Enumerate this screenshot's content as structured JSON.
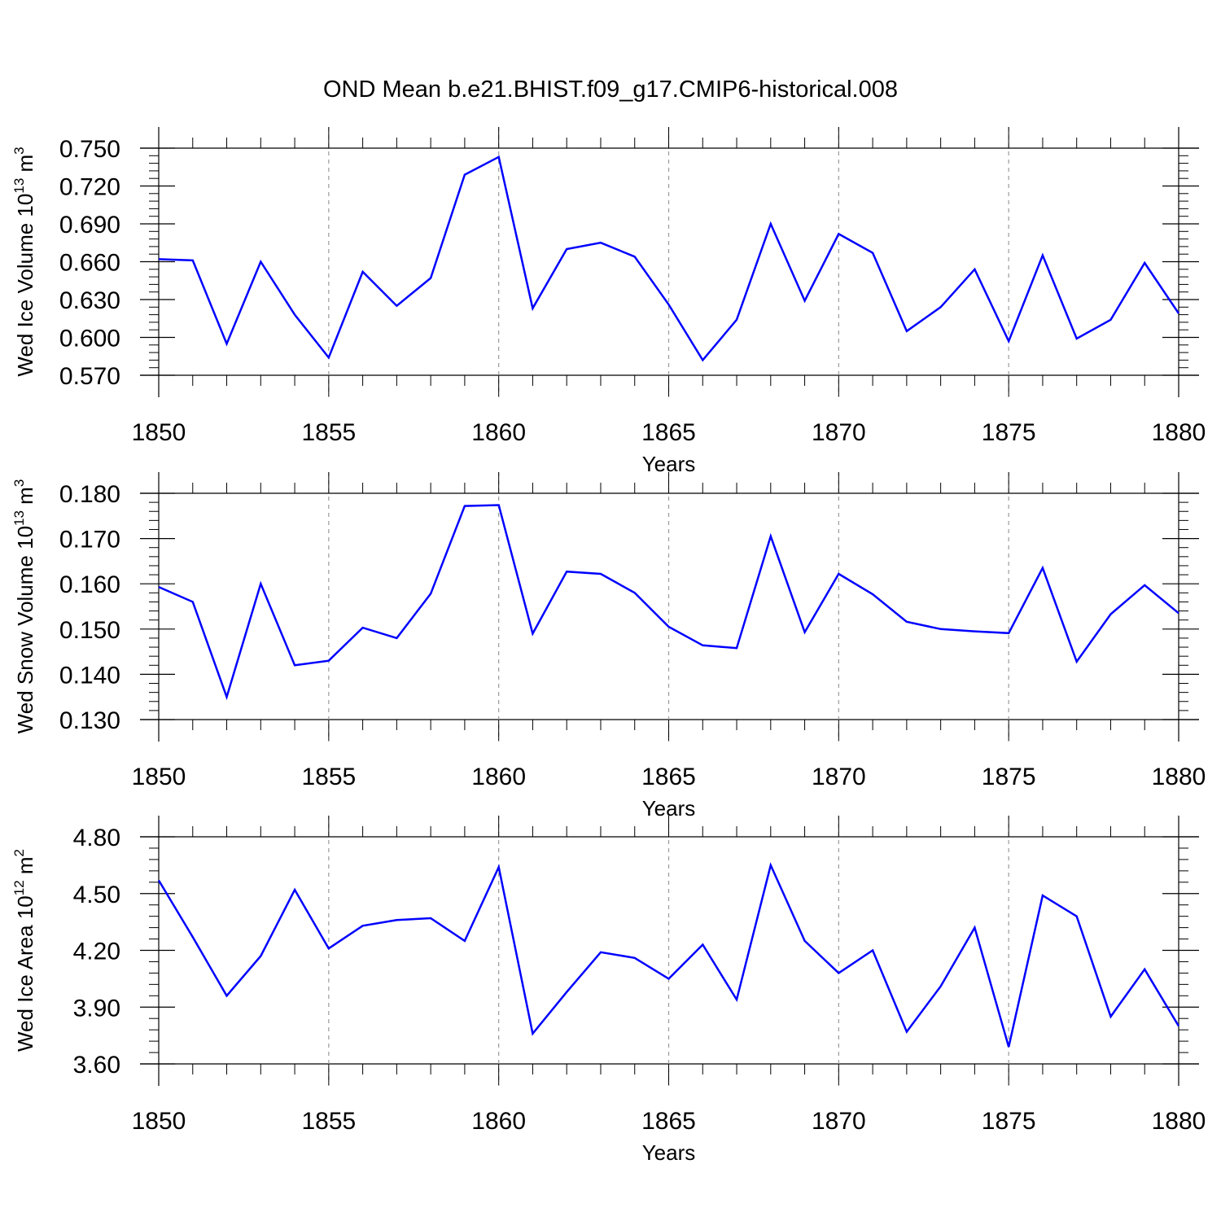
{
  "figure_title": "OND Mean b.e21.BHIST.f09_g17.CMIP6-historical.008",
  "colors": {
    "line": "#0000ff",
    "axis": "#000000",
    "grid": "#9a9a9a"
  },
  "chart_data": [
    {
      "type": "line",
      "ylabel_main": "Wed Ice Volume 10",
      "ylabel_exp": "13",
      "ylabel_unit": " m",
      "ylabel_unit_exp": "3",
      "xlabel": "Years",
      "xlim": [
        1850,
        1880
      ],
      "ylim": [
        0.57,
        0.75
      ],
      "yticks": [
        "0.570",
        "0.600",
        "0.630",
        "0.660",
        "0.690",
        "0.720",
        "0.750"
      ],
      "xticks": [
        "1850",
        "1855",
        "1860",
        "1865",
        "1870",
        "1875",
        "1880"
      ],
      "x": [
        1850,
        1851,
        1852,
        1853,
        1854,
        1855,
        1856,
        1857,
        1858,
        1859,
        1860,
        1861,
        1862,
        1863,
        1864,
        1865,
        1866,
        1867,
        1868,
        1869,
        1870,
        1871,
        1872,
        1873,
        1874,
        1875,
        1876,
        1877,
        1878,
        1879,
        1880
      ],
      "values": [
        0.662,
        0.661,
        0.595,
        0.66,
        0.618,
        0.584,
        0.652,
        0.625,
        0.647,
        0.729,
        0.743,
        0.623,
        0.67,
        0.675,
        0.664,
        0.626,
        0.582,
        0.614,
        0.69,
        0.629,
        0.682,
        0.667,
        0.605,
        0.624,
        0.654,
        0.597,
        0.665,
        0.599,
        0.614,
        0.659,
        0.619
      ]
    },
    {
      "type": "line",
      "ylabel_main": "Wed Snow Volume 10",
      "ylabel_exp": "13",
      "ylabel_unit": " m",
      "ylabel_unit_exp": "3",
      "xlabel": "Years",
      "xlim": [
        1850,
        1880
      ],
      "ylim": [
        0.13,
        0.18
      ],
      "yticks": [
        "0.130",
        "0.140",
        "0.150",
        "0.160",
        "0.170",
        "0.180"
      ],
      "xticks": [
        "1850",
        "1855",
        "1860",
        "1865",
        "1870",
        "1875",
        "1880"
      ],
      "x": [
        1850,
        1851,
        1852,
        1853,
        1854,
        1855,
        1856,
        1857,
        1858,
        1859,
        1860,
        1861,
        1862,
        1863,
        1864,
        1865,
        1866,
        1867,
        1868,
        1869,
        1870,
        1871,
        1872,
        1873,
        1874,
        1875,
        1876,
        1877,
        1878,
        1879,
        1880
      ],
      "values": [
        0.1593,
        0.156,
        0.135,
        0.16,
        0.142,
        0.143,
        0.1503,
        0.148,
        0.1578,
        0.1772,
        0.1774,
        0.149,
        0.1627,
        0.1622,
        0.158,
        0.1505,
        0.1464,
        0.1458,
        0.1705,
        0.1493,
        0.1622,
        0.1577,
        0.1516,
        0.15,
        0.1495,
        0.1491,
        0.1635,
        0.1428,
        0.1533,
        0.1597,
        0.1535
      ]
    },
    {
      "type": "line",
      "ylabel_main": "Wed Ice Area 10",
      "ylabel_exp": "12",
      "ylabel_unit": " m",
      "ylabel_unit_exp": "2",
      "xlabel": "Years",
      "xlim": [
        1850,
        1880
      ],
      "ylim": [
        3.6,
        4.8
      ],
      "yticks": [
        "3.60",
        "3.90",
        "4.20",
        "4.50",
        "4.80"
      ],
      "xticks": [
        "1850",
        "1855",
        "1860",
        "1865",
        "1870",
        "1875",
        "1880"
      ],
      "x": [
        1850,
        1851,
        1852,
        1853,
        1854,
        1855,
        1856,
        1857,
        1858,
        1859,
        1860,
        1861,
        1862,
        1863,
        1864,
        1865,
        1866,
        1867,
        1868,
        1869,
        1870,
        1871,
        1872,
        1873,
        1874,
        1875,
        1876,
        1877,
        1878,
        1879,
        1880
      ],
      "values": [
        4.57,
        4.27,
        3.96,
        4.17,
        4.52,
        4.21,
        4.33,
        4.36,
        4.37,
        4.25,
        4.64,
        3.76,
        3.98,
        4.19,
        4.16,
        4.05,
        4.23,
        3.94,
        4.65,
        4.25,
        4.08,
        4.2,
        3.77,
        4.01,
        4.32,
        3.69,
        4.49,
        4.38,
        3.85,
        4.1,
        3.8
      ]
    }
  ]
}
